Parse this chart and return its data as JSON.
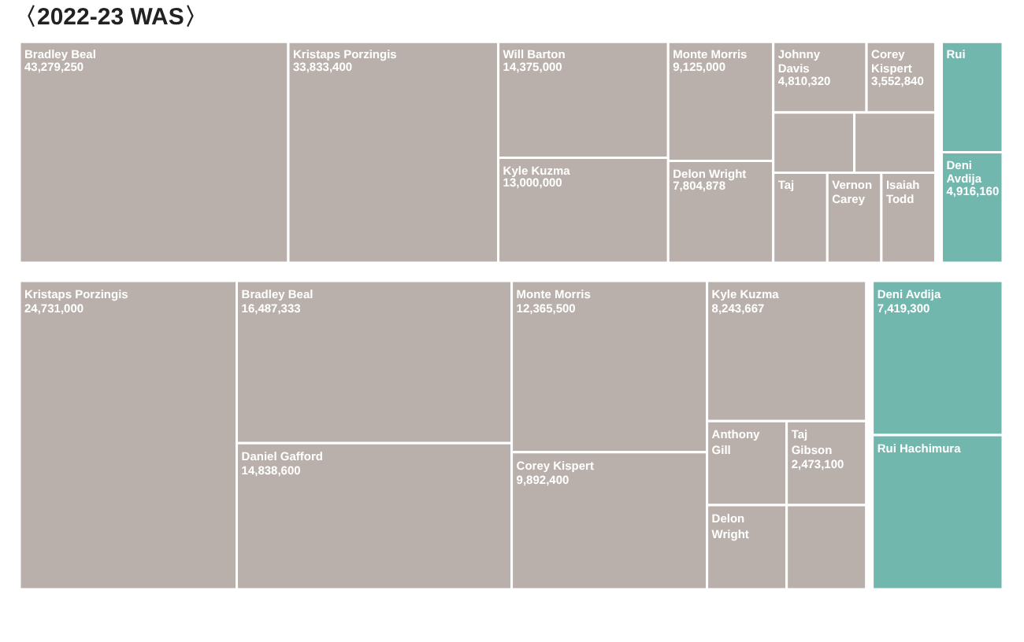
{
  "chart_data": [
    {
      "type": "other",
      "title": "〈2022-23 WAS〉",
      "categories": [
        "Bradley Beal",
        "Kristaps Porzingis",
        "Will Barton",
        "Kyle Kuzma",
        "Monte Morris",
        "Delon Wright",
        "Johnny Davis",
        "Corey Kispert",
        null,
        null,
        "Taj",
        "Vernon Carey",
        "Isaiah Todd",
        "Rui",
        "Deni Avdija"
      ],
      "values": [
        43279250,
        33833400,
        14375000,
        13000000,
        9125000,
        7804878,
        4810320,
        3552840,
        null,
        null,
        null,
        null,
        null,
        null,
        4916160
      ],
      "value_labels": [
        "43,279,250",
        "33,833,400",
        "14,375,000",
        "13,000,000",
        "9,125,000",
        "7,804,878",
        "4,810,320",
        "3,552,840",
        null,
        null,
        null,
        null,
        null,
        null,
        "4,916,160"
      ],
      "colors": [
        "#b9b0ab",
        "#b9b0ab",
        "#b9b0ab",
        "#b9b0ab",
        "#b9b0ab",
        "#b9b0ab",
        "#b9b0ab",
        "#b9b0ab",
        "#b9b0ab",
        "#b9b0ab",
        "#b9b0ab",
        "#b9b0ab",
        "#b9b0ab",
        "#72b7ae",
        "#72b7ae"
      ]
    },
    {
      "type": "other",
      "categories": [
        "Kristaps Porzingis",
        "Bradley Beal",
        "Daniel Gafford",
        "Monte Morris",
        "Corey Kispert",
        "Kyle Kuzma",
        "Anthony Gill",
        "Taj Gibson",
        "Delon Wright",
        null,
        "Deni Avdija",
        "Rui Hachimura"
      ],
      "values": [
        24731000,
        16487333,
        14838600,
        12365500,
        9892400,
        8243667,
        null,
        2473100,
        null,
        null,
        7419300,
        null
      ],
      "value_labels": [
        "24,731,000",
        "16,487,333",
        "14,838,600",
        "12,365,500",
        "9,892,400",
        "8,243,667",
        null,
        "2,473,100",
        null,
        null,
        "7,419,300",
        null
      ],
      "colors": [
        "#b9b0ab",
        "#b9b0ab",
        "#b9b0ab",
        "#b9b0ab",
        "#b9b0ab",
        "#b9b0ab",
        "#b9b0ab",
        "#b9b0ab",
        "#b9b0ab",
        "#b9b0ab",
        "#72b7ae",
        "#72b7ae"
      ]
    }
  ]
}
